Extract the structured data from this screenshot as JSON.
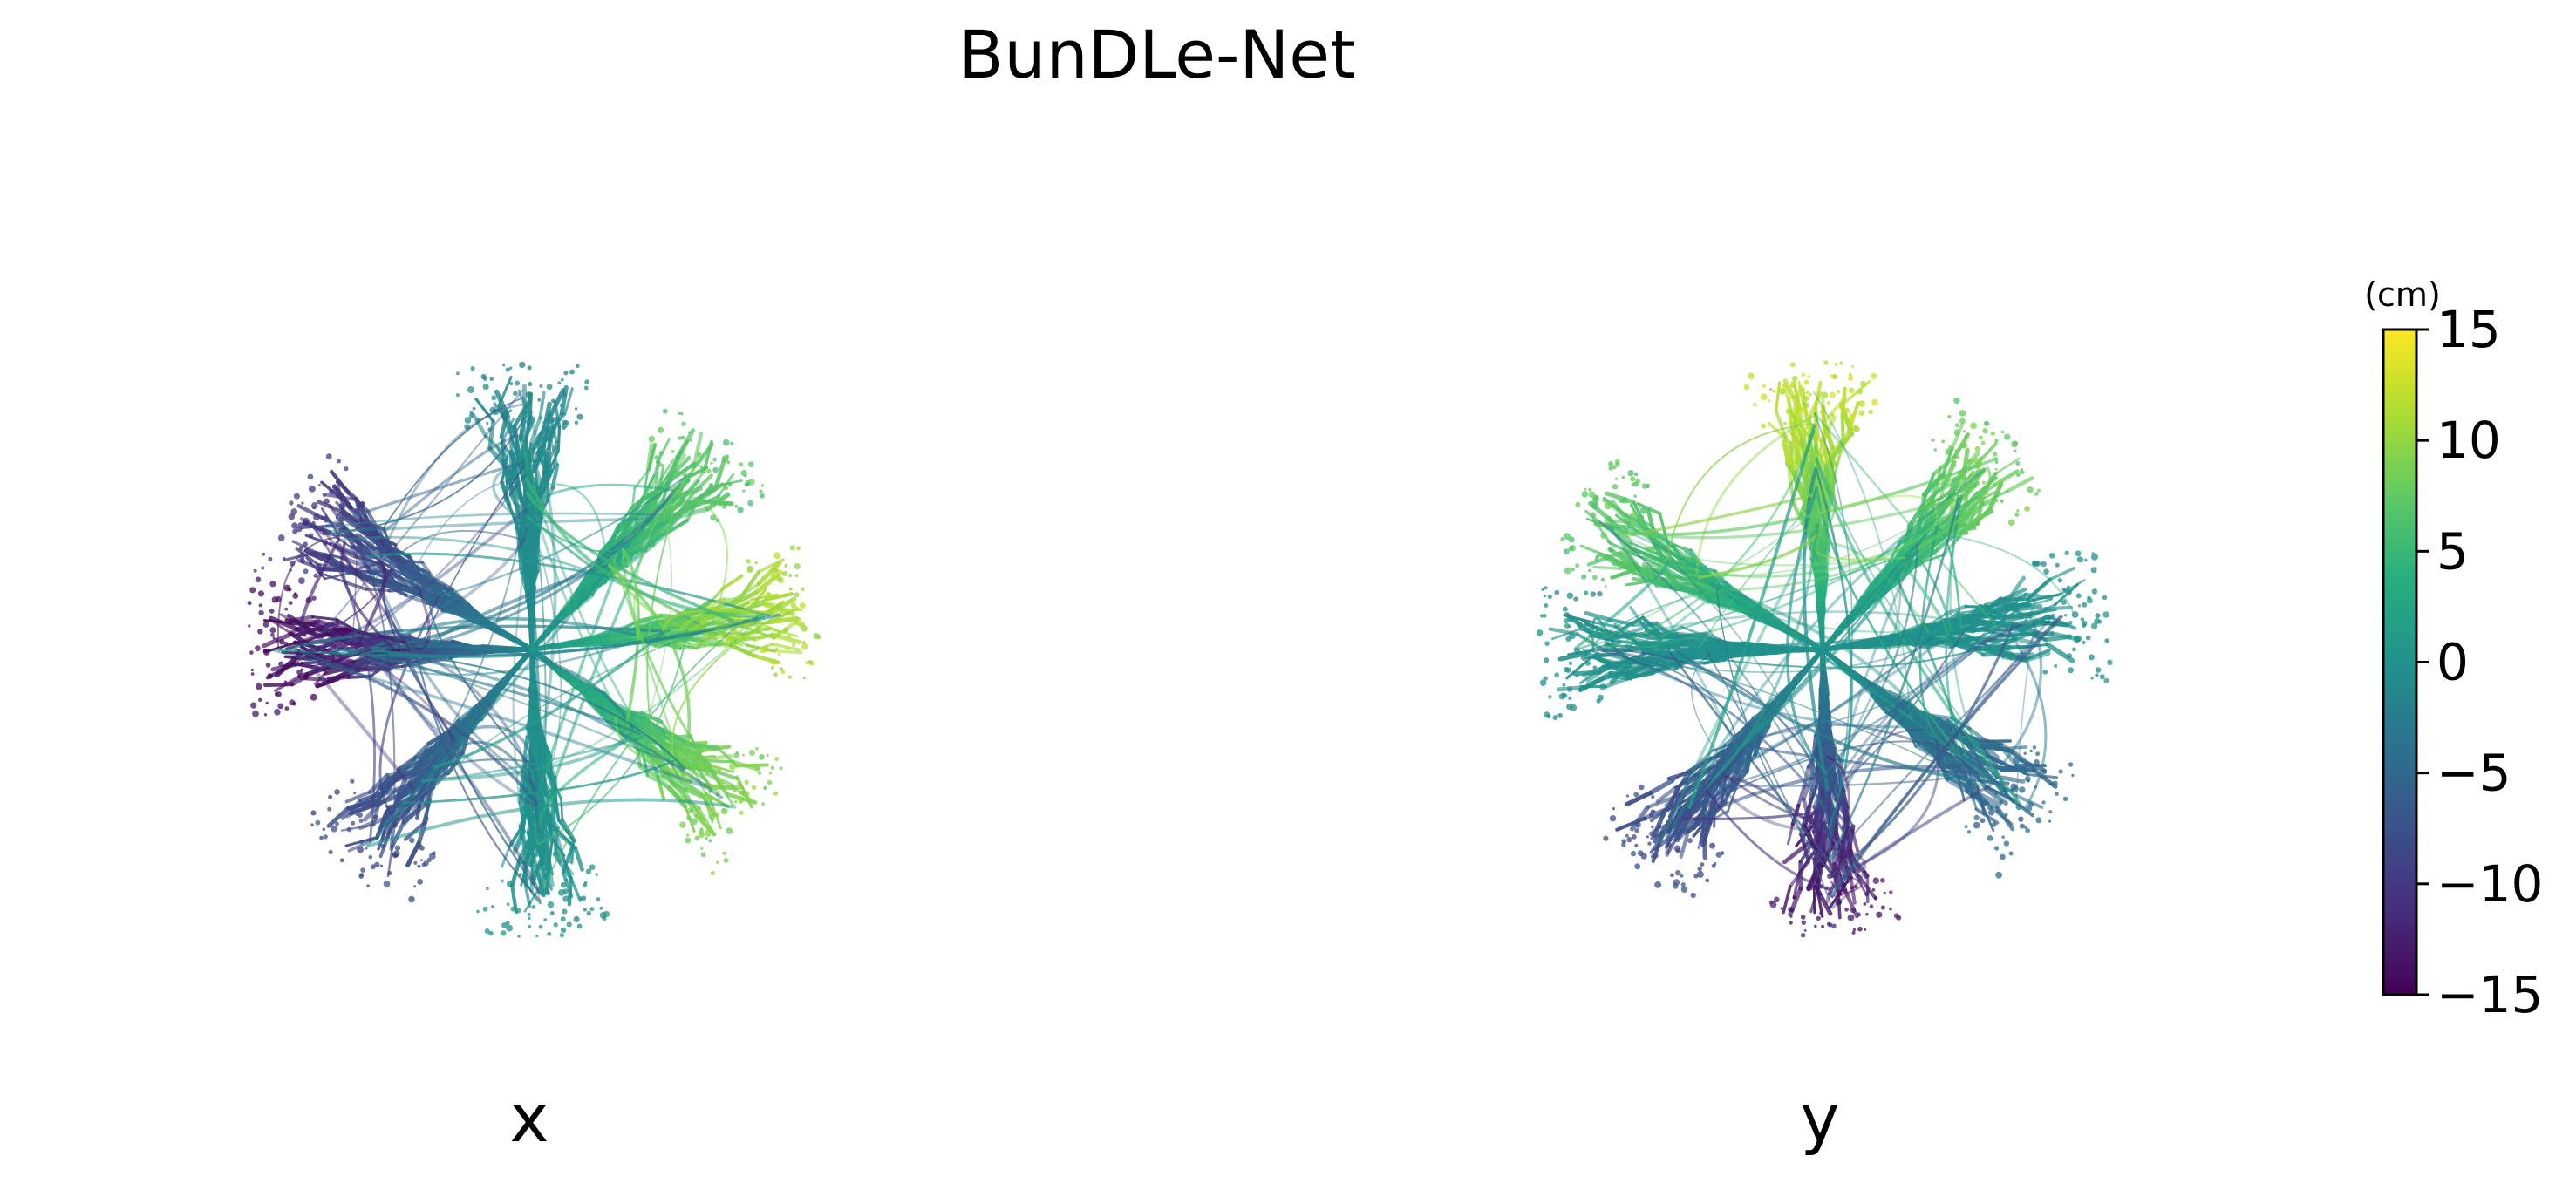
{
  "title": "BunDLe-Net",
  "panels": [
    {
      "label": "x",
      "variable": "x"
    },
    {
      "label": "y",
      "variable": "y"
    }
  ],
  "colorbar": {
    "unit": "(cm)",
    "ticks": [
      "15",
      "10",
      "5",
      "0",
      "−5",
      "−10",
      "−15"
    ],
    "range": [
      -15,
      15
    ],
    "colormap": "viridis"
  },
  "chart_data": {
    "type": "scatter",
    "title": "BunDLe-Net",
    "subplots": [
      "x",
      "y"
    ],
    "colorbar_range": [
      -15,
      15
    ],
    "colorbar_unit": "(cm)",
    "colormap": "viridis",
    "arms": [
      {
        "direction": "upper-left",
        "x_value": -10,
        "y_value": 7
      },
      {
        "direction": "left",
        "x_value": -14,
        "y_value": 0
      },
      {
        "direction": "lower-left",
        "x_value": -8,
        "y_value": -8
      },
      {
        "direction": "bottom",
        "x_value": 0,
        "y_value": -13
      },
      {
        "direction": "top",
        "x_value": -1,
        "y_value": 12
      },
      {
        "direction": "upper-right",
        "x_value": 7,
        "y_value": 8
      },
      {
        "direction": "right",
        "x_value": 11,
        "y_value": 0
      },
      {
        "direction": "lower-right",
        "x_value": 9,
        "y_value": -5
      }
    ],
    "grid": false,
    "axes_visible": false
  }
}
